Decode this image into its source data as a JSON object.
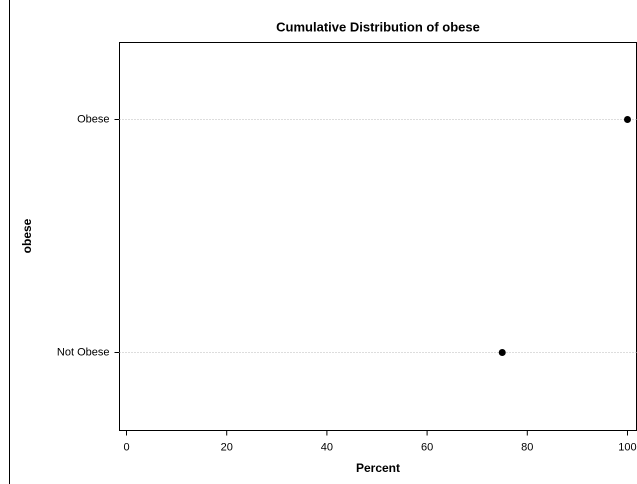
{
  "chart_data": {
    "type": "dot",
    "title": "Cumulative Distribution of obese",
    "x_label": "Percent",
    "y_label": "obese",
    "categories": [
      "Obese",
      "Not Obese"
    ],
    "values": [
      100,
      75
    ],
    "color": "#000000",
    "xlim": [
      -1.4,
      101.8
    ],
    "xticks": [
      0,
      20,
      40,
      60,
      80,
      100
    ],
    "grid": true
  }
}
